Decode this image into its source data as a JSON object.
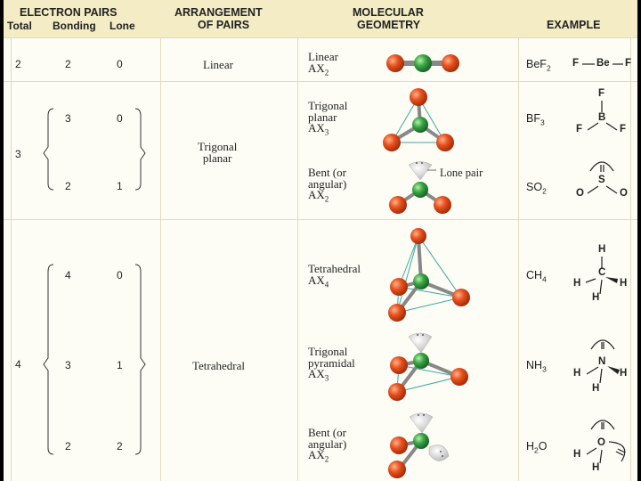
{
  "header": {
    "electron_pairs": "ELECTRON PAIRS",
    "total": "Total",
    "bonding": "Bonding",
    "lone": "Lone",
    "arrangement_1": "ARRANGEMENT",
    "arrangement_2": "OF PAIRS",
    "molecular_1": "MOLECULAR",
    "molecular_2": "GEOMETRY",
    "example": "EXAMPLE"
  },
  "rows": [
    {
      "total": "2",
      "bonding": "2",
      "lone": "0",
      "arrangement": "Linear",
      "geometry": [
        "Linear",
        "AX"
      ],
      "sub": "2",
      "formula": "BeF",
      "formula_sub": "2"
    },
    {
      "bonding": "3",
      "lone": "0",
      "geometry": [
        "Trigonal",
        "planar",
        "AX"
      ],
      "sub": "3",
      "formula": "BF",
      "formula_sub": "3"
    },
    {
      "bonding": "2",
      "lone": "1",
      "geometry": [
        "Bent (or",
        "angular)",
        "AX"
      ],
      "sub": "2",
      "formula": "SO",
      "formula_sub": "2"
    },
    {
      "bonding": "4",
      "lone": "0",
      "geometry": [
        "Tetrahedral",
        "AX"
      ],
      "sub": "4",
      "formula": "CH",
      "formula_sub": "4"
    },
    {
      "bonding": "3",
      "lone": "1",
      "geometry": [
        "Trigonal",
        "pyramidal",
        "AX"
      ],
      "sub": "3",
      "formula": "NH",
      "formula_sub": "3"
    },
    {
      "bonding": "2",
      "lone": "2",
      "geometry": [
        "Bent (or",
        "angular)",
        "AX"
      ],
      "sub": "2",
      "formula": "H",
      "formula_sub": "2",
      "formula_end": "O"
    }
  ],
  "groups": [
    {
      "total": "3",
      "arrangement": [
        "Trigonal",
        "planar"
      ]
    },
    {
      "total": "4",
      "arrangement": [
        "Tetrahedral"
      ]
    }
  ],
  "lone_pair_label": "Lone pair",
  "lewis": {
    "bef2": [
      "F",
      "Be",
      "F"
    ],
    "bf3": [
      "F",
      "B",
      "F",
      "F"
    ],
    "so2": [
      "S",
      "O",
      "O"
    ],
    "ch4": [
      "H",
      "C",
      "H",
      "H",
      "H"
    ],
    "nh3": [
      "N",
      "H",
      "H",
      "H"
    ],
    "h2o": [
      "O",
      "H",
      "H"
    ]
  },
  "colors": {
    "outer_atom": "#e8501e",
    "central_atom": "#3aa545",
    "lone_pair": "#f1f1f1",
    "header_bg": "#f3ecc4"
  }
}
